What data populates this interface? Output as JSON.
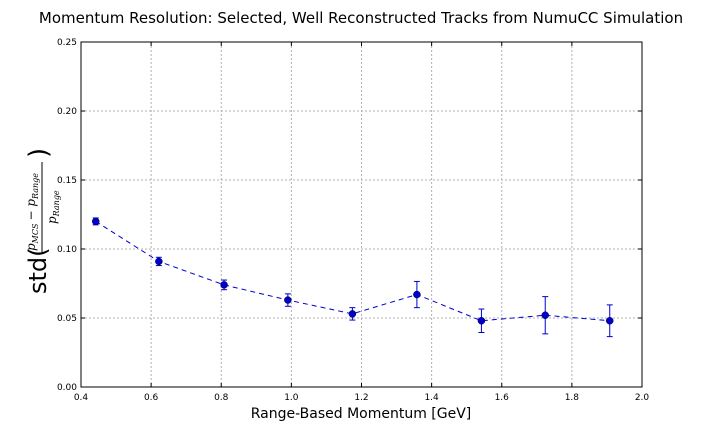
{
  "chart_data": {
    "type": "scatter",
    "title": "Momentum Resolution: Selected, Well Reconstructed Tracks from NumuCC Simulation",
    "xlabel": "Range-Based Momentum [GeV]",
    "ylabel": {
      "prefix": "std(",
      "numerator": "p",
      "numerator_sub_1": "MCS",
      "minus": "− p",
      "numerator_sub_2": "Range",
      "denominator": "p",
      "denominator_sub": "Range",
      "suffix": ")"
    },
    "xlim": [
      0.4,
      2.0
    ],
    "ylim": [
      0.0,
      0.25
    ],
    "x_ticks": [
      "0.4",
      "0.6",
      "0.8",
      "1.0",
      "1.2",
      "1.4",
      "1.6",
      "1.8",
      "2.0"
    ],
    "y_ticks": [
      "0.00",
      "0.05",
      "0.10",
      "0.15",
      "0.20",
      "0.25"
    ],
    "grid": true,
    "color": "#0000cc",
    "line_style": "dashed",
    "points": [
      {
        "x": 0.442,
        "y": 0.12,
        "yerr": 0.0025
      },
      {
        "x": 0.622,
        "y": 0.091,
        "yerr": 0.003
      },
      {
        "x": 0.808,
        "y": 0.074,
        "yerr": 0.0035
      },
      {
        "x": 0.99,
        "y": 0.063,
        "yerr": 0.0045
      },
      {
        "x": 1.174,
        "y": 0.053,
        "yerr": 0.0045
      },
      {
        "x": 1.358,
        "y": 0.067,
        "yerr": 0.0095
      },
      {
        "x": 1.542,
        "y": 0.048,
        "yerr": 0.0085
      },
      {
        "x": 1.724,
        "y": 0.052,
        "yerr": 0.0135
      },
      {
        "x": 1.908,
        "y": 0.048,
        "yerr": 0.0115
      }
    ]
  }
}
